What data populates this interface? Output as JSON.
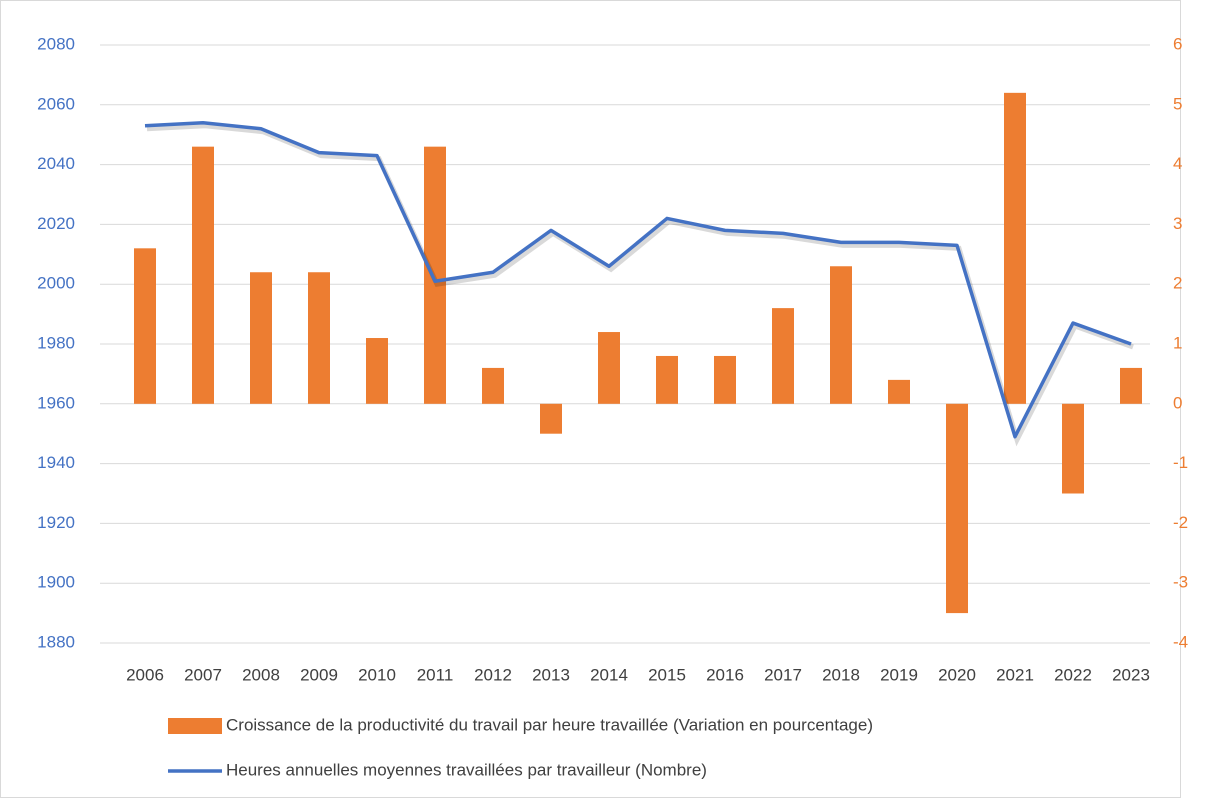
{
  "chart_data": {
    "type": "bar-line",
    "categories": [
      "2006",
      "2007",
      "2008",
      "2009",
      "2010",
      "2011",
      "2012",
      "2013",
      "2014",
      "2015",
      "2016",
      "2017",
      "2018",
      "2019",
      "2020",
      "2021",
      "2022",
      "2023"
    ],
    "series": [
      {
        "name": "Croissance de la productivité du travail par heure travaillée (Variation en pourcentage)",
        "type": "bar",
        "axis": "y2",
        "color": "#ED7D31",
        "values": [
          2.6,
          4.3,
          2.2,
          2.2,
          1.1,
          4.3,
          0.6,
          -0.5,
          1.2,
          0.8,
          0.8,
          1.6,
          2.3,
          0.4,
          -3.5,
          5.2,
          -1.5,
          0.6
        ]
      },
      {
        "name": "Heures annuelles moyennes travaillées par travailleur (Nombre)",
        "type": "line",
        "axis": "y",
        "color": "#4472C4",
        "values": [
          2053,
          2054,
          2052,
          2044,
          2043,
          2001,
          2004,
          2018,
          2006,
          2022,
          2018,
          2017,
          2014,
          2014,
          2013,
          1949,
          1987,
          1980
        ]
      }
    ],
    "ylim": [
      1880,
      2080
    ],
    "yticks": [
      1880,
      1900,
      1920,
      1940,
      1960,
      1980,
      2000,
      2020,
      2040,
      2060,
      2080
    ],
    "y2lim": [
      -4,
      6
    ],
    "y2ticks": [
      -4,
      -3,
      -2,
      -1,
      0,
      1,
      2,
      3,
      4,
      5,
      6
    ],
    "grid": true,
    "legend": "bottom"
  }
}
